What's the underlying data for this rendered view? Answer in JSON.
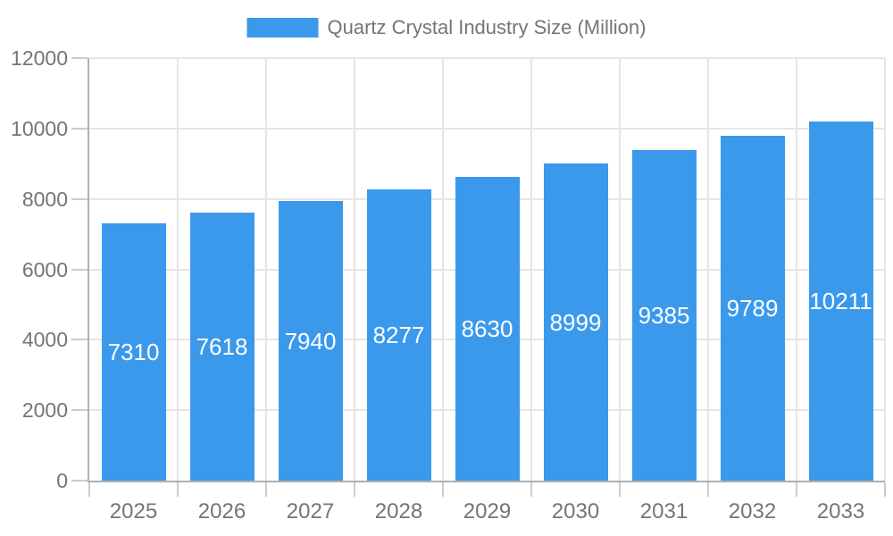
{
  "legend": {
    "label": "Quartz Crystal Industry Size (Million)"
  },
  "chart_data": {
    "type": "bar",
    "title": "Quartz Crystal Industry Size (Million)",
    "categories": [
      "2025",
      "2026",
      "2027",
      "2028",
      "2029",
      "2030",
      "2031",
      "2032",
      "2033"
    ],
    "values": [
      7310,
      7618,
      7940,
      8277,
      8630,
      8999,
      9385,
      9789,
      10211
    ],
    "xlabel": "",
    "ylabel": "",
    "ylim": [
      0,
      12000
    ],
    "yticks": [
      0,
      2000,
      4000,
      6000,
      8000,
      10000,
      12000
    ],
    "grid": true,
    "legend_position": "top-center",
    "value_label_position": "inside-center"
  },
  "colors": {
    "bar": "#3b99ec",
    "grid": "#e6e6e6",
    "axis": "#b0b0b0",
    "tick": "#cccccc",
    "axis_text": "#757575",
    "legend_text": "#757575",
    "value_text": "#ffffff",
    "background": "#ffffff"
  }
}
